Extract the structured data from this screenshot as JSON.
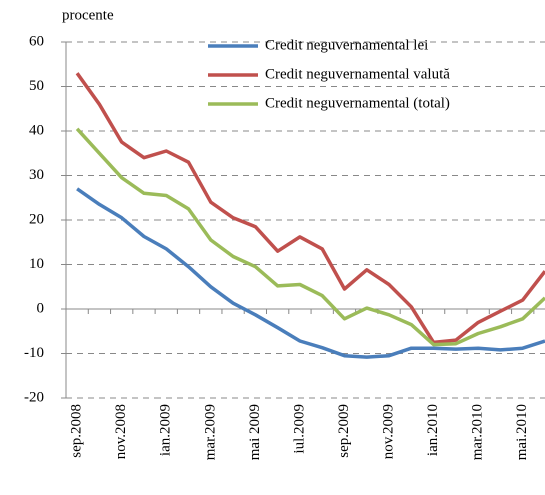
{
  "chart_data": {
    "type": "line",
    "y_label": "procente",
    "categories": [
      "sep.2008",
      null,
      "nov.2008",
      null,
      "ian.2009",
      null,
      "mar.2009",
      null,
      "mai 2009",
      null,
      "iul.2009",
      null,
      "sep.2009",
      null,
      "nov.2009",
      null,
      "ian.2010",
      null,
      "mar.2010",
      null,
      "mai.2010",
      null
    ],
    "series": [
      {
        "name": "Credit neguvernamental lei",
        "color": "#4a7ebb",
        "values": [
          27,
          23.5,
          20.5,
          16.3,
          13.5,
          9.5,
          5,
          1.3,
          -1.3,
          -4.2,
          -7.2,
          -8.7,
          -10.5,
          -10.8,
          -10.5,
          -8.8,
          -8.8,
          -9,
          -8.8,
          -9.2,
          -8.8,
          -7.2
        ]
      },
      {
        "name": "Credit neguvernamental valută",
        "color": "#c0504d",
        "values": [
          53,
          46,
          37.5,
          34,
          35.5,
          33,
          24,
          20.5,
          18.5,
          13,
          16.2,
          13.5,
          4.5,
          8.8,
          5.5,
          0.5,
          -7.5,
          -7,
          -3,
          -0.5,
          2,
          8.5
        ]
      },
      {
        "name": "Credit neguvernamental (total)",
        "color": "#9bbb59",
        "values": [
          40.5,
          35,
          29.5,
          26,
          25.5,
          22.5,
          15.5,
          11.8,
          9.5,
          5.2,
          5.5,
          3,
          -2.2,
          0.2,
          -1.3,
          -3.5,
          -8,
          -7.8,
          -5.5,
          -4,
          -2.2,
          2.5
        ]
      }
    ],
    "ylim": [
      -20,
      60
    ],
    "yticks": [
      -20,
      -10,
      0,
      10,
      20,
      30,
      40,
      50,
      60
    ],
    "grid": true
  }
}
